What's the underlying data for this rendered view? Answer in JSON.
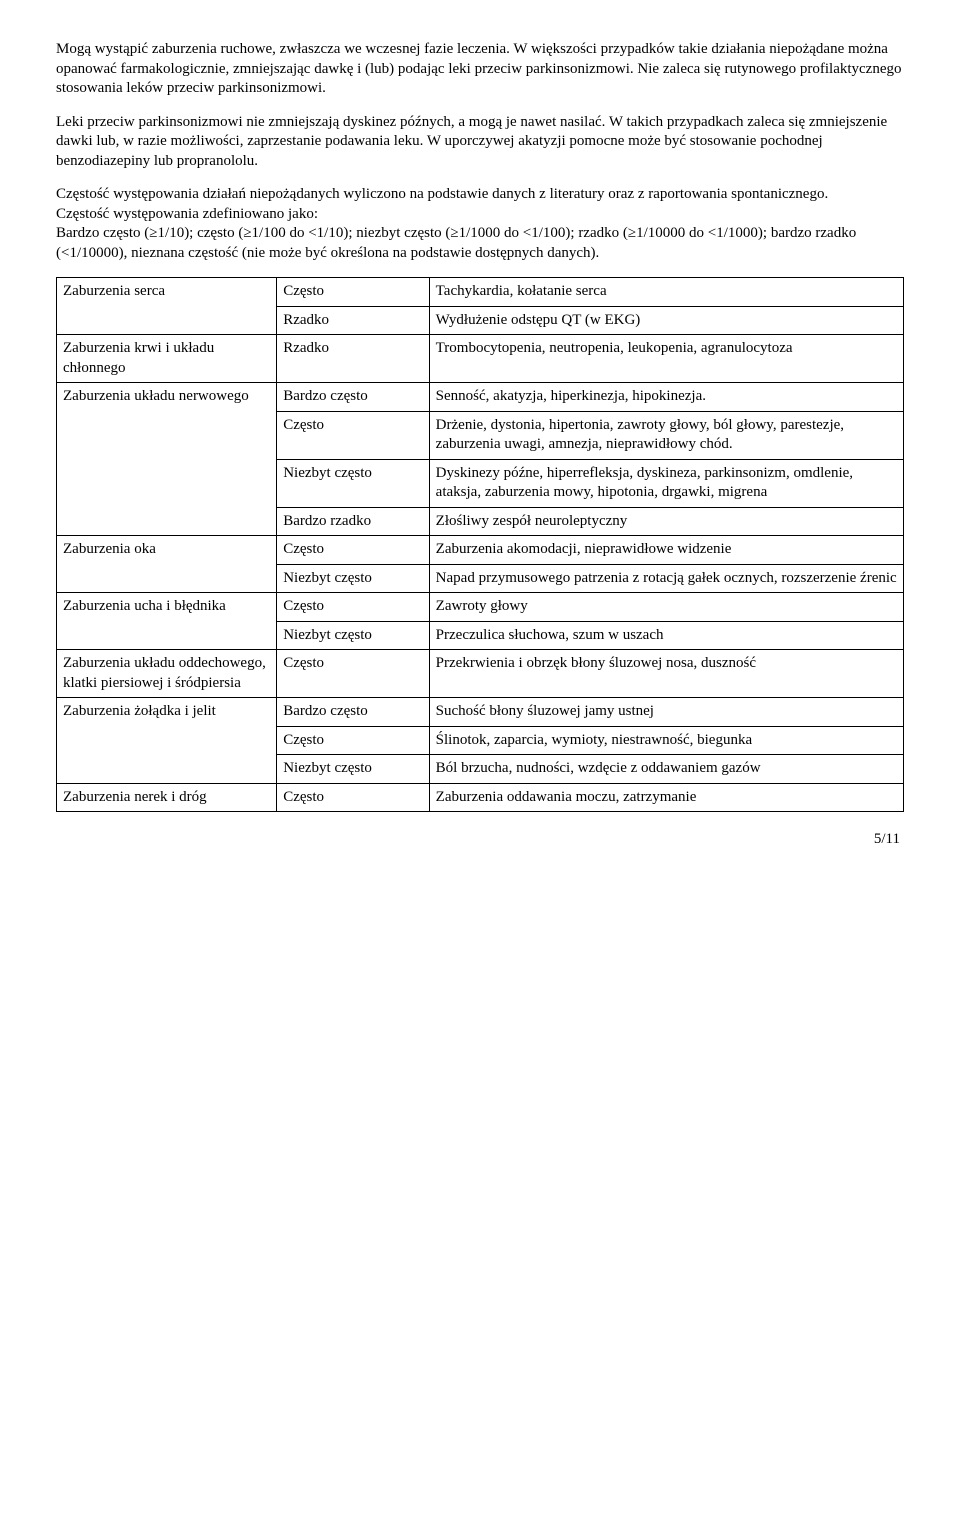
{
  "para1": "Mogą wystąpić zaburzenia ruchowe, zwłaszcza we wczesnej fazie leczenia. W większości przypadków takie działania niepożądane można opanować farmakologicznie, zmniejszając dawkę i (lub) podając leki przeciw parkinsonizmowi. Nie zaleca się rutynowego profilaktycznego stosowania leków przeciw parkinsonizmowi.",
  "para2": "Leki przeciw parkinsonizmowi nie zmniejszają dyskinez późnych, a mogą je nawet nasilać. W takich przypadkach zaleca się zmniejszenie dawki lub, w razie możliwości, zaprzestanie podawania leku. W uporczywej akatyzji pomocne może być stosowanie pochodnej benzodiazepiny lub propranololu.",
  "para3": "Częstość występowania działań niepożądanych wyliczono na podstawie danych z literatury oraz z raportowania spontanicznego.\nCzęstość występowania zdefiniowano jako:\nBardzo często (≥1/10); często (≥1/100 do <1/10); niezbyt często (≥1/1000 do <1/100); rzadko (≥1/10000 do <1/1000); bardzo rzadko (<1/10000), nieznana częstość (nie może być określona na podstawie dostępnych danych).",
  "rows": [
    {
      "c1": "Zaburzenia serca",
      "c2": "Często",
      "c3": "Tachykardia, kołatanie serca"
    },
    {
      "c1": "",
      "c2": "Rzadko",
      "c3": "Wydłużenie odstępu QT (w EKG)"
    },
    {
      "c1": "Zaburzenia krwi i układu chłonnego",
      "c2": "Rzadko",
      "c3": "Trombocytopenia, neutropenia, leukopenia, agranulocytoza"
    },
    {
      "c1": "Zaburzenia układu nerwowego",
      "c2": "Bardzo często",
      "c3": "Senność, akatyzja, hiperkinezja, hipokinezja."
    },
    {
      "c1": "",
      "c2": "Często",
      "c3": "Drżenie, dystonia, hipertonia, zawroty głowy, ból głowy, parestezje, zaburzenia uwagi, amnezja, nieprawidłowy chód."
    },
    {
      "c1": "",
      "c2": "Niezbyt często",
      "c3": "Dyskinezy późne, hiperrefleksja, dyskineza, parkinsonizm, omdlenie, ataksja, zaburzenia mowy, hipotonia, drgawki, migrena"
    },
    {
      "c1": "",
      "c2": "Bardzo rzadko",
      "c3": "Złośliwy zespół neuroleptyczny"
    },
    {
      "c1": "Zaburzenia oka",
      "c2": "Często",
      "c3": "Zaburzenia akomodacji, nieprawidłowe widzenie"
    },
    {
      "c1": "",
      "c2": "Niezbyt często",
      "c3": "Napad przymusowego patrzenia z rotacją gałek ocznych, rozszerzenie źrenic"
    },
    {
      "c1": "Zaburzenia ucha i błędnika",
      "c2": "Często",
      "c3": "Zawroty głowy"
    },
    {
      "c1": "",
      "c2": "Niezbyt często",
      "c3": "Przeczulica słuchowa, szum w uszach"
    },
    {
      "c1": "Zaburzenia układu oddechowego, klatki piersiowej i śródpiersia",
      "c2": "Często",
      "c3": "Przekrwienia i obrzęk błony śluzowej nosa, duszność"
    },
    {
      "c1": "Zaburzenia żołądka i jelit",
      "c2": "Bardzo często",
      "c3": "Suchość błony śluzowej jamy ustnej"
    },
    {
      "c1": "",
      "c2": "Często",
      "c3": "Ślinotok, zaparcia, wymioty, niestrawność, biegunka"
    },
    {
      "c1": "",
      "c2": "Niezbyt często",
      "c3": "Ból brzucha, nudności, wzdęcie z oddawaniem gazów"
    },
    {
      "c1": "Zaburzenia nerek i dróg",
      "c2": "Często",
      "c3": "Zaburzenia oddawania moczu, zatrzymanie"
    }
  ],
  "pageNumber": "5/11"
}
